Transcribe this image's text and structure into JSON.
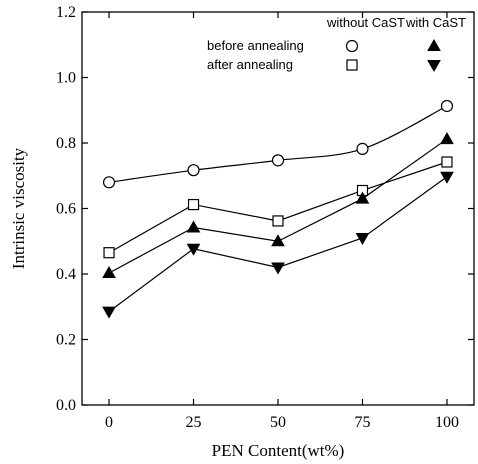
{
  "chart_data": {
    "type": "line",
    "xlabel": "PEN Content(wt%)",
    "ylabel": "Intrinsic viscosity",
    "x": [
      0,
      25,
      50,
      75,
      100
    ],
    "x_ticks": [
      "0",
      "25",
      "50",
      "75",
      "100"
    ],
    "y_ticks": [
      "0.0",
      "0.2",
      "0.4",
      "0.6",
      "0.8",
      "1.0",
      "1.2"
    ],
    "xlim": [
      -8,
      108
    ],
    "ylim": [
      0.0,
      1.2
    ],
    "grid": false,
    "legend_placement": "top-right",
    "legend": {
      "col_headers": [
        "without CaST",
        "with CaST"
      ],
      "row_labels": [
        "before annealing",
        "after annealing"
      ]
    },
    "series": [
      {
        "name": "before annealing without CaST",
        "marker": "circle-open",
        "curve": "smooth",
        "values": [
          0.68,
          0.717,
          0.747,
          0.782,
          0.913
        ]
      },
      {
        "name": "after annealing without CaST",
        "marker": "square-open",
        "curve": "straight",
        "values": [
          0.465,
          0.612,
          0.562,
          0.655,
          0.742
        ]
      },
      {
        "name": "before annealing with CaST",
        "marker": "triangle-up-filled",
        "curve": "straight",
        "values": [
          0.403,
          0.542,
          0.5,
          0.63,
          0.812
        ]
      },
      {
        "name": "after annealing with CaST",
        "marker": "triangle-down-filled",
        "curve": "straight",
        "values": [
          0.285,
          0.477,
          0.42,
          0.51,
          0.697
        ]
      }
    ]
  }
}
